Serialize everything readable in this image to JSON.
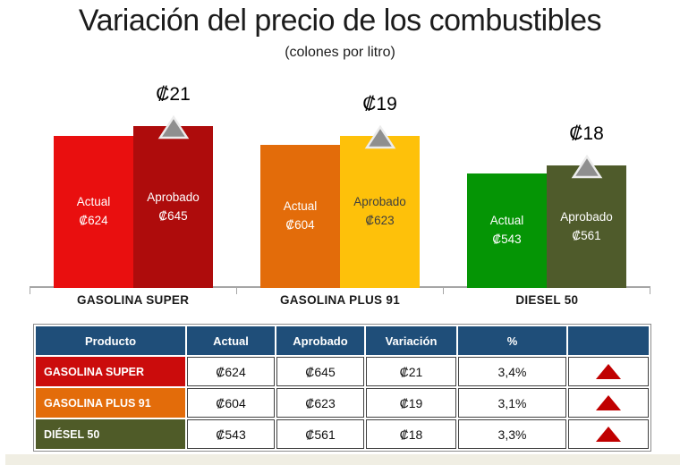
{
  "title": "Variación del precio de los combustibles",
  "subtitle": "(colones por litro)",
  "chart_data": {
    "type": "bar",
    "title": "Variación del precio de los combustibles (colones por litro)",
    "categories": [
      "GASOLINA SUPER",
      "GASOLINA PLUS 91",
      "DIESEL 50"
    ],
    "series": [
      {
        "name": "Actual",
        "values": [
          624,
          604,
          543
        ]
      },
      {
        "name": "Aprobado",
        "values": [
          645,
          623,
          561
        ]
      }
    ],
    "ylim": [
      300,
      660
    ],
    "grid": false,
    "legend": "labels inside bars",
    "groups": [
      {
        "category": "GASOLINA SUPER",
        "delta_label": "₡21",
        "actual": {
          "label": "Actual",
          "value": 624,
          "value_label": "₡624",
          "color": "#e90f0f",
          "text_color": "#ffffff"
        },
        "aprobado": {
          "label": "Aprobado",
          "value": 645,
          "value_label": "₡645",
          "color": "#ae0c0c",
          "text_color": "#ffffff"
        }
      },
      {
        "category": "GASOLINA PLUS 91",
        "delta_label": "₡19",
        "actual": {
          "label": "Actual",
          "value": 604,
          "value_label": "₡604",
          "color": "#e36c0a",
          "text_color": "#ffffff"
        },
        "aprobado": {
          "label": "Aprobado",
          "value": 623,
          "value_label": "₡623",
          "color": "#fec10a",
          "text_color": "#3f3f3f"
        }
      },
      {
        "category": "DIESEL 50",
        "delta_label": "₡18",
        "actual": {
          "label": "Actual",
          "value": 543,
          "value_label": "₡543",
          "color": "#059505",
          "text_color": "#ffffff"
        },
        "aprobado": {
          "label": "Aprobado",
          "value": 561,
          "value_label": "₡561",
          "color": "#4f5b2b",
          "text_color": "#ffffff"
        }
      }
    ],
    "marker_color": "#8f8f8f",
    "axis_color": "#a6a6a6"
  },
  "table": {
    "headers": [
      "Producto",
      "Actual",
      "Aprobado",
      "Variación",
      "%",
      ""
    ],
    "header_bg": "#1f4e79",
    "arrow_color": "#c00000",
    "rows": [
      {
        "producto": "GASOLINA SUPER",
        "color": "#cb0c0c",
        "actual": "₡624",
        "aprobado": "₡645",
        "variacion": "₡21",
        "pct": "3,4%"
      },
      {
        "producto": "GASOLINA PLUS 91",
        "color": "#e36c0a",
        "actual": "₡604",
        "aprobado": "₡623",
        "variacion": "₡19",
        "pct": "3,1%"
      },
      {
        "producto": "DIÉSEL 50",
        "color": "#4f5b28",
        "actual": "₡543",
        "aprobado": "₡561",
        "variacion": "₡18",
        "pct": "3,3%"
      }
    ]
  }
}
